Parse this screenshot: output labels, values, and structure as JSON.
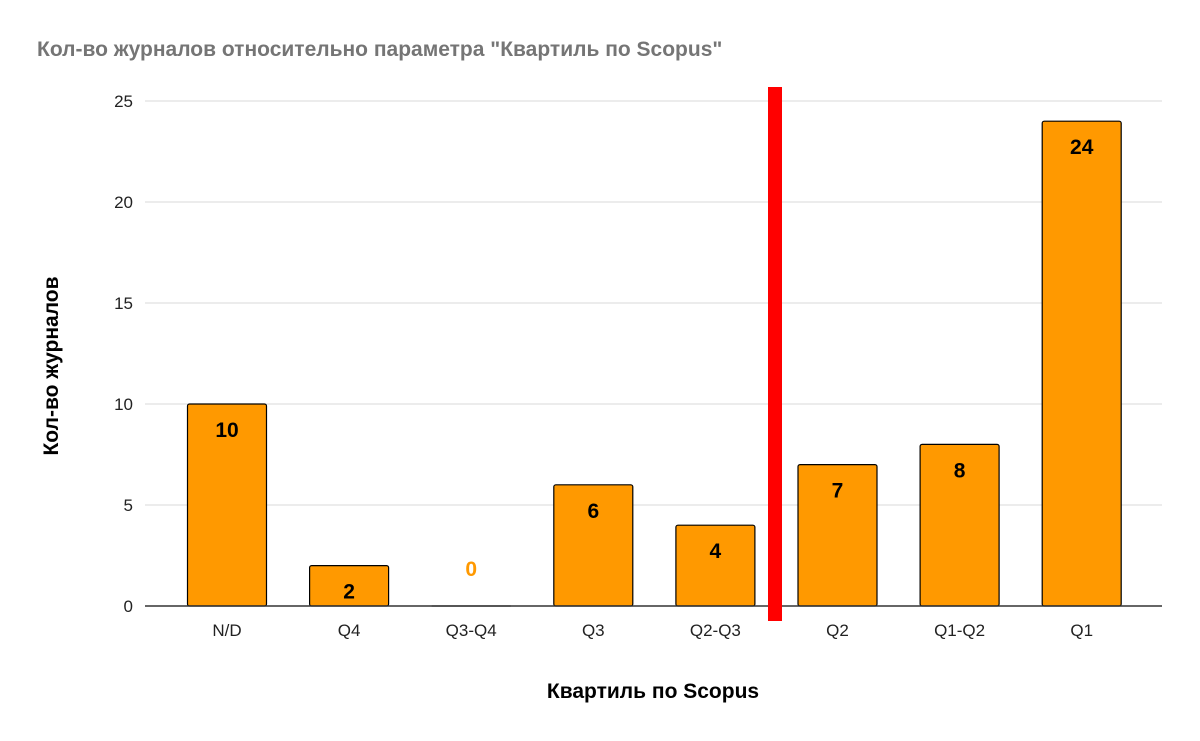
{
  "chart_data": {
    "type": "bar",
    "title": "Кол-во журналов относительно параметра \"Квартиль по Scopus\"",
    "xlabel": "Квартиль по Scopus",
    "ylabel": "Кол-во журналов",
    "categories": [
      "N/D",
      "Q4",
      "Q3-Q4",
      "Q3",
      "Q2-Q3",
      "Q2",
      "Q1-Q2",
      "Q1"
    ],
    "values": [
      10,
      2,
      0,
      6,
      4,
      7,
      8,
      24
    ],
    "data_labels": [
      "10",
      "2",
      "0",
      "6",
      "4",
      "7",
      "8",
      "24"
    ],
    "ylim": [
      0,
      25
    ],
    "yticks": [
      0,
      5,
      10,
      15,
      20,
      25
    ],
    "grid": true,
    "legend": "none",
    "divider": {
      "between": [
        "Q2-Q3",
        "Q2"
      ],
      "color": "#ff0000"
    },
    "colors": {
      "bar": "#ff9900",
      "bar_outline": "#000000",
      "label_dark": "#000000",
      "label_on_empty": "#ff9900",
      "grid": "#d9d9d9",
      "title": "#757575"
    }
  }
}
